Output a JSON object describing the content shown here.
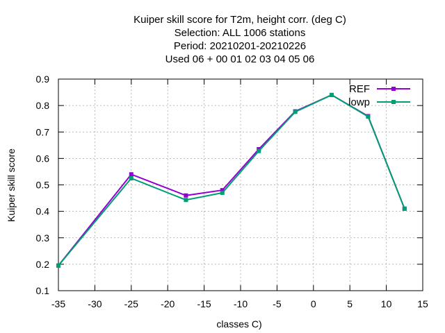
{
  "chart_data": {
    "type": "line",
    "title": [
      "Kuiper skill score  for T2m, height corr. (deg C)",
      "Selection: ALL   1006 stations",
      "Period: 20210201-20210226",
      "Used  06  + 00 01 02 03 04 05 06"
    ],
    "xlabel": "classes C)",
    "ylabel": "Kuiper skill score",
    "xlim": [
      -35,
      15
    ],
    "ylim": [
      0.1,
      0.9
    ],
    "xticks": [
      -35,
      -30,
      -25,
      -20,
      -15,
      -10,
      -5,
      0,
      5,
      10,
      15
    ],
    "yticks": [
      0.1,
      0.2,
      0.3,
      0.4,
      0.5,
      0.6,
      0.7,
      0.8,
      0.9
    ],
    "grid": true,
    "legend_position": "top-right",
    "series": [
      {
        "name": "REF",
        "color": "#9400d3",
        "x": [
          -35,
          -25,
          -17.5,
          -12.5,
          -7.5,
          -2.5,
          2.5,
          7.5,
          12.5
        ],
        "y": [
          0.195,
          0.54,
          0.46,
          0.48,
          0.635,
          0.778,
          0.84,
          0.76,
          0.41
        ]
      },
      {
        "name": "lowp",
        "color": "#009e73",
        "x": [
          -35,
          -25,
          -17.5,
          -12.5,
          -7.5,
          -2.5,
          2.5,
          7.5,
          12.5
        ],
        "y": [
          0.195,
          0.525,
          0.443,
          0.47,
          0.628,
          0.776,
          0.84,
          0.758,
          0.41
        ]
      }
    ]
  }
}
